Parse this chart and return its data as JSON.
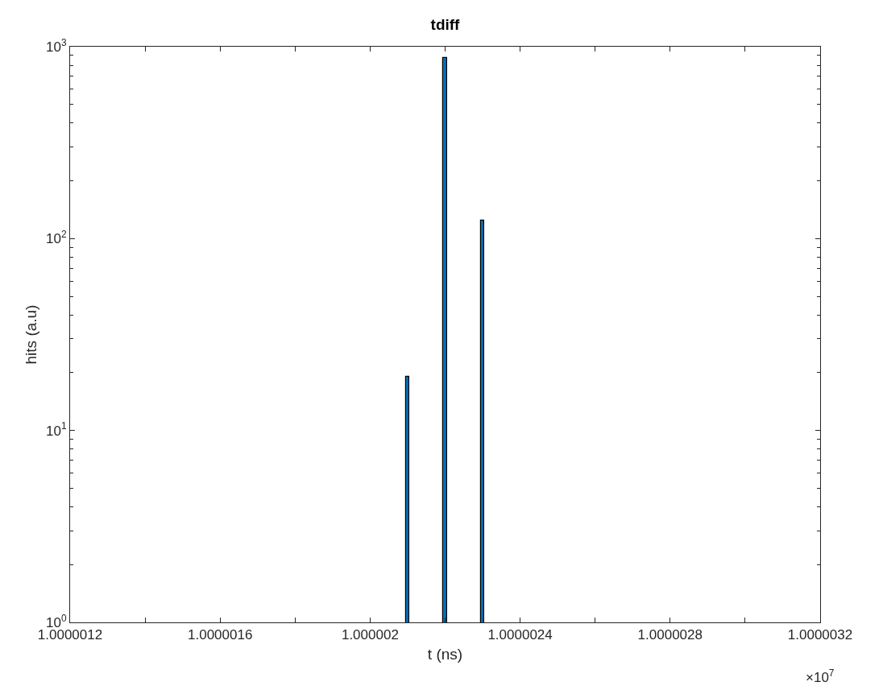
{
  "chart_data": {
    "type": "histogram",
    "title": "tdiff",
    "xlabel": "t (ns)",
    "ylabel": "hits (a.u)",
    "bins": [
      1.000002095,
      1.000002105,
      1.000002195,
      1.000002205,
      1.000002295,
      1.000002305
    ],
    "values": [
      19,
      null,
      870,
      null,
      124
    ],
    "color": "#0072bd",
    "log": "y",
    "xlim": [
      1.0000012,
      1.0000032
    ],
    "xticks": [
      1.0000012,
      {
        "value": 1.0000014,
        "label": null
      },
      1.0000016,
      {
        "value": 1.0000018,
        "label": null
      },
      1.000002,
      {
        "value": 1.0000022,
        "label": null
      },
      1.0000024,
      {
        "value": 1.0000026,
        "label": null
      },
      1.0000028,
      {
        "value": 1.000003,
        "label": null
      },
      1.0000032
    ],
    "ylim": [
      1,
      1000
    ],
    "yticks": [
      {
        "value": 1,
        "label": "10$^{0}$"
      },
      {
        "value": 10,
        "label": "10$^{1}$"
      },
      {
        "value": 100,
        "label": "10$^{2}$"
      },
      {
        "value": 1000,
        "label": "10$^{3}$"
      }
    ],
    "annotations": [
      "×10$^{7}$"
    ]
  }
}
